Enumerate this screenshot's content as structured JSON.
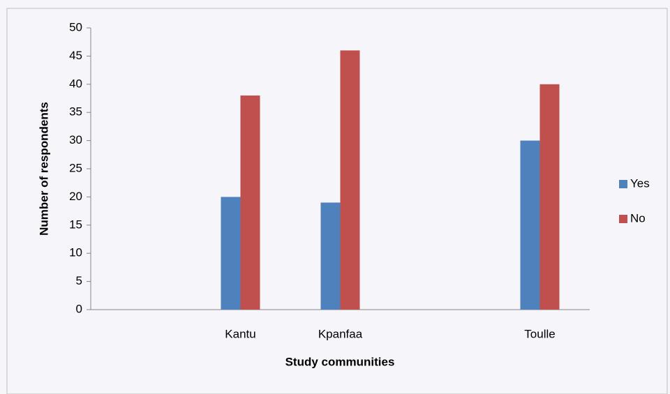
{
  "chart_data": {
    "type": "bar",
    "categories": [
      null,
      "Kantu",
      "Kpanfaa",
      null,
      "Toulle"
    ],
    "series": [
      {
        "name": "Yes",
        "color": "#4f81bd",
        "values": [
          null,
          20,
          19,
          null,
          30
        ]
      },
      {
        "name": "No",
        "color": "#c0504d",
        "values": [
          null,
          38,
          46,
          null,
          40
        ]
      }
    ],
    "xlabel": "Study communities",
    "ylabel": "Number of respondents",
    "ylim": [
      0,
      50
    ],
    "yticks": [
      0,
      5,
      10,
      15,
      20,
      25,
      30,
      35,
      40,
      45,
      50
    ],
    "grid": false,
    "legend": "right"
  }
}
